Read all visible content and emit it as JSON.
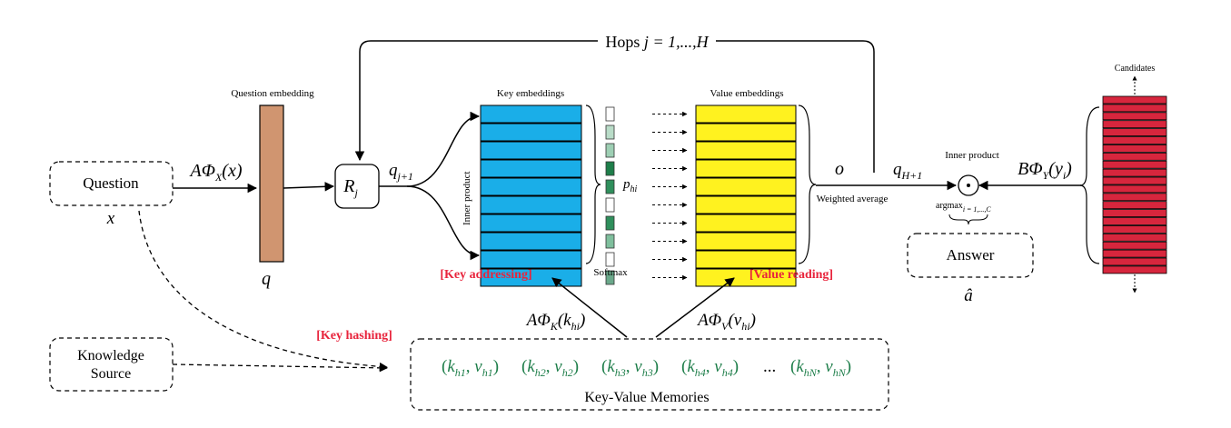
{
  "colors": {
    "key": "#1aaee8",
    "value": "#fff21f",
    "candidate": "#d7263d",
    "question_embedding": "#d09570",
    "highlight_red": "#e8243c",
    "memory_green": "#1e7e4a",
    "softmax_shades": [
      "#ffffff",
      "#b9dcc8",
      "#9ecfb4",
      "#1e7e4a",
      "#2f8f5c",
      "#ffffff",
      "#2f8f5c",
      "#7fbf9d",
      "#ffffff",
      "#6aa88a"
    ]
  },
  "icons": {
    "inner_product": "circle-dot-icon"
  },
  "hops": {
    "prefix": "Hops ",
    "var": "j",
    "rest": " = 1,...,H"
  },
  "question": {
    "label": "Question",
    "var": "x"
  },
  "knowledge": {
    "line1": "Knowledge",
    "line2": "Source"
  },
  "question_embedding": {
    "title": "Question embedding",
    "var": "q"
  },
  "a_phi_x": {
    "a": "AΦ",
    "sub": "X",
    "arg": "(x)"
  },
  "r_j": {
    "r": "R",
    "sub": "j"
  },
  "q_j1": {
    "q": "q",
    "sub": "j+1"
  },
  "inner_product_vertical": "Inner product",
  "key_embeddings": {
    "title": "Key embeddings",
    "count": 10
  },
  "value_embeddings": {
    "title": "Value embeddings",
    "count": 10
  },
  "p_hi": {
    "p": "p",
    "sub": "hi"
  },
  "softmax": "Softmax",
  "key_addressing": "[Key addressing]",
  "value_reading": "[Value reading]",
  "key_hashing": "[Key hashing]",
  "o": "o",
  "weighted_average": "Weighted average",
  "q_h1": {
    "q": "q",
    "sub": "H+1"
  },
  "inner_product_label": "Inner product",
  "argmax": {
    "text": "argmax",
    "sub": "i = 1,...,C"
  },
  "b_phi_y": {
    "b": "BΦ",
    "sub": "Y",
    "arg": "(y",
    "arg_sub": "i",
    "close": ")"
  },
  "candidates": {
    "title": "Candidates",
    "count": 22
  },
  "answer": {
    "label": "Answer",
    "var": "â"
  },
  "a_phi_k": {
    "a": "AΦ",
    "sub": "K",
    "arg": "(k",
    "arg_sub": "hi",
    "close": ")"
  },
  "a_phi_v": {
    "a": "AΦ",
    "sub": "V",
    "arg": "(v",
    "arg_sub": "hi",
    "close": ")"
  },
  "memories": {
    "pairs": [
      {
        "k": "k",
        "k_sub": "h1",
        "v": "v",
        "v_sub": "h1"
      },
      {
        "k": "k",
        "k_sub": "h2",
        "v": "v",
        "v_sub": "h2"
      },
      {
        "k": "k",
        "k_sub": "h3",
        "v": "v",
        "v_sub": "h3"
      },
      {
        "k": "k",
        "k_sub": "h4",
        "v": "v",
        "v_sub": "h4"
      }
    ],
    "ellipsis": "...",
    "last": {
      "k": "k",
      "k_sub": "hN",
      "v": "v",
      "v_sub": "hN"
    },
    "label": "Key-Value Memories"
  }
}
